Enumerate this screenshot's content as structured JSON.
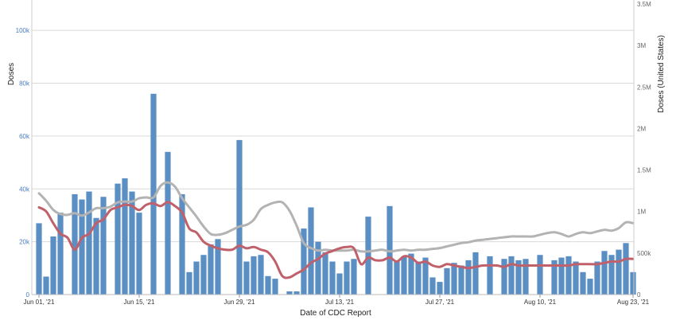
{
  "chart_data": {
    "type": "bar",
    "xlabel": "Date of CDC Report",
    "ylabel": "Doses",
    "y2label": "Doses (United States)",
    "ylim": [
      0,
      110000
    ],
    "y2lim": [
      0,
      3500000
    ],
    "y_ticks": [
      {
        "value": 0,
        "label": "0"
      },
      {
        "value": 20000,
        "label": "20k"
      },
      {
        "value": 40000,
        "label": "40k"
      },
      {
        "value": 60000,
        "label": "60k"
      },
      {
        "value": 80000,
        "label": "80k"
      },
      {
        "value": 100000,
        "label": "100k"
      }
    ],
    "y2_ticks": [
      {
        "value": 0,
        "label": "0"
      },
      {
        "value": 500000,
        "label": "500k"
      },
      {
        "value": 1000000,
        "label": "1M"
      },
      {
        "value": 1500000,
        "label": "1.5M"
      },
      {
        "value": 2000000,
        "label": "2M"
      },
      {
        "value": 2500000,
        "label": "2.5M"
      },
      {
        "value": 3000000,
        "label": "3M"
      },
      {
        "value": 3500000,
        "label": "3.5M"
      }
    ],
    "x_ticks": [
      {
        "index": 0,
        "label": "Jun 01, '21"
      },
      {
        "index": 14,
        "label": "Jun 15, '21"
      },
      {
        "index": 28,
        "label": "Jun 29, '21"
      },
      {
        "index": 42,
        "label": "Jul 13, '21"
      },
      {
        "index": 56,
        "label": "Jul 27, '21"
      },
      {
        "index": 70,
        "label": "Aug 10, '21"
      },
      {
        "index": 83,
        "label": "Aug 23, '21"
      }
    ],
    "grid": true,
    "colors": {
      "bars": "#5b8fc4",
      "state_avg": "#c0606a",
      "us_avg": "#b3b3b3",
      "grid": "#d9d9d9"
    },
    "series": [
      {
        "type": "bar",
        "axis": "left",
        "values": [
          27000,
          6800,
          22000,
          31000,
          0,
          38000,
          36000,
          39000,
          29000,
          37000,
          0,
          42000,
          44000,
          39000,
          31000,
          0,
          76000,
          0,
          54000,
          0,
          38000,
          8500,
          12500,
          15000,
          19000,
          21000,
          0,
          0,
          58500,
          12500,
          14500,
          15000,
          7000,
          6000,
          0,
          1200,
          1200,
          25000,
          33000,
          20000,
          16000,
          12500,
          8000,
          12500,
          13500,
          0,
          29500,
          0,
          0,
          33500,
          12500,
          14500,
          15500,
          12500,
          14000,
          6500,
          4800,
          10000,
          12000,
          11000,
          13000,
          16000,
          0,
          14500,
          0,
          13500,
          14500,
          13000,
          13500,
          0,
          15000,
          0,
          13000,
          14000,
          14500,
          12500,
          8500,
          6000,
          12500,
          16500,
          15000,
          17000,
          19500,
          8500
        ]
      },
      {
        "type": "line",
        "axis": "right",
        "values": [
          1220000,
          1130000,
          1020000,
          970000,
          960000,
          980000,
          950000,
          990000,
          1040000,
          1040000,
          1060000,
          1110000,
          1120000,
          1120000,
          1160000,
          1170000,
          1170000,
          1310000,
          1350000,
          1300000,
          1160000,
          1050000,
          940000,
          820000,
          730000,
          720000,
          740000,
          780000,
          820000,
          840000,
          900000,
          1030000,
          1080000,
          1110000,
          1110000,
          1010000,
          830000,
          620000,
          560000,
          530000,
          540000,
          530000,
          530000,
          530000,
          540000,
          520000,
          520000,
          530000,
          540000,
          520000,
          530000,
          540000,
          530000,
          540000,
          540000,
          550000,
          560000,
          580000,
          600000,
          620000,
          630000,
          650000,
          660000,
          670000,
          680000,
          690000,
          700000,
          700000,
          700000,
          700000,
          720000,
          740000,
          750000,
          730000,
          700000,
          730000,
          750000,
          740000,
          760000,
          780000,
          770000,
          800000,
          870000,
          860000
        ]
      },
      {
        "type": "line",
        "axis": "left",
        "values": [
          33000,
          31500,
          27000,
          23000,
          21500,
          17000,
          21500,
          23000,
          27000,
          28500,
          32000,
          33000,
          34000,
          33500,
          32000,
          34000,
          34500,
          33500,
          35000,
          33500,
          31000,
          25000,
          23500,
          20000,
          18500,
          17500,
          17000,
          17000,
          18500,
          17500,
          18000,
          17000,
          16000,
          12500,
          7000,
          6500,
          8000,
          9500,
          12000,
          13500,
          15500,
          16500,
          17500,
          18000,
          17500,
          11500,
          14000,
          13000,
          13000,
          14000,
          12500,
          14500,
          14000,
          12000,
          12500,
          11000,
          10500,
          11500,
          11000,
          10500,
          10000,
          10500,
          11000,
          11000,
          11000,
          10500,
          11500,
          11000,
          11000,
          11000,
          11000,
          11000,
          11000,
          11000,
          11000,
          11500,
          11500,
          11500,
          11500,
          12000,
          12500,
          12500,
          13500,
          13500
        ]
      }
    ]
  }
}
